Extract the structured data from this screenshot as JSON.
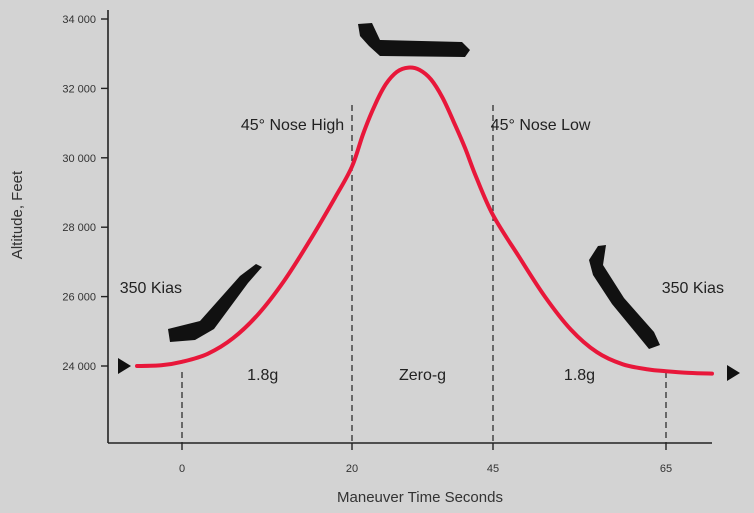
{
  "chart_data": {
    "type": "line",
    "title": "",
    "xlabel": "Maneuver Time Seconds",
    "ylabel": "Altitude, Feet",
    "x_ticks": [
      0,
      20,
      45,
      65
    ],
    "x_tick_labels": [
      "0",
      "20",
      "45",
      "65"
    ],
    "y_ticks": [
      24000,
      26000,
      28000,
      30000,
      32000,
      34000
    ],
    "y_tick_labels": [
      "24 000",
      "26 000",
      "28 000",
      "30 000",
      "32 000",
      "34 000"
    ],
    "grid": false,
    "series": [
      {
        "name": "",
        "color": "#e8173a",
        "points": [
          [
            -6.5,
            24000
          ],
          [
            -3,
            24020
          ],
          [
            0,
            24120
          ],
          [
            3,
            24350
          ],
          [
            6,
            24800
          ],
          [
            9,
            25500
          ],
          [
            12,
            26450
          ],
          [
            15,
            27600
          ],
          [
            18,
            28850
          ],
          [
            20,
            29750
          ],
          [
            22,
            30700
          ],
          [
            24,
            31500
          ],
          [
            26,
            32120
          ],
          [
            28,
            32480
          ],
          [
            30,
            32600
          ],
          [
            32,
            32530
          ],
          [
            34,
            32260
          ],
          [
            36,
            31750
          ],
          [
            38,
            31050
          ],
          [
            40,
            30300
          ],
          [
            42,
            29450
          ],
          [
            45,
            28350
          ],
          [
            48,
            27150
          ],
          [
            51,
            26000
          ],
          [
            54,
            25050
          ],
          [
            57,
            24400
          ],
          [
            60,
            24050
          ],
          [
            63,
            23900
          ],
          [
            65,
            23850
          ],
          [
            68,
            23800
          ],
          [
            71,
            23780
          ]
        ]
      }
    ],
    "phase_lines": [
      20,
      45
    ],
    "entry_exit_lines": [
      0,
      65
    ],
    "annotations": [
      {
        "text": "45° Nose High",
        "x": 13,
        "y": 30800
      },
      {
        "text": "45° Nose Low",
        "x": 50.5,
        "y": 30800
      },
      {
        "text": "350 Kias",
        "x": -4.5,
        "y": 26100
      },
      {
        "text": "350 Kias",
        "x": 68.5,
        "y": 26100
      },
      {
        "text": "1.8g",
        "x": 9.5,
        "y": 23600
      },
      {
        "text": "Zero-g",
        "x": 32.5,
        "y": 23600
      },
      {
        "text": "1.8g",
        "x": 55,
        "y": 23600
      }
    ]
  }
}
